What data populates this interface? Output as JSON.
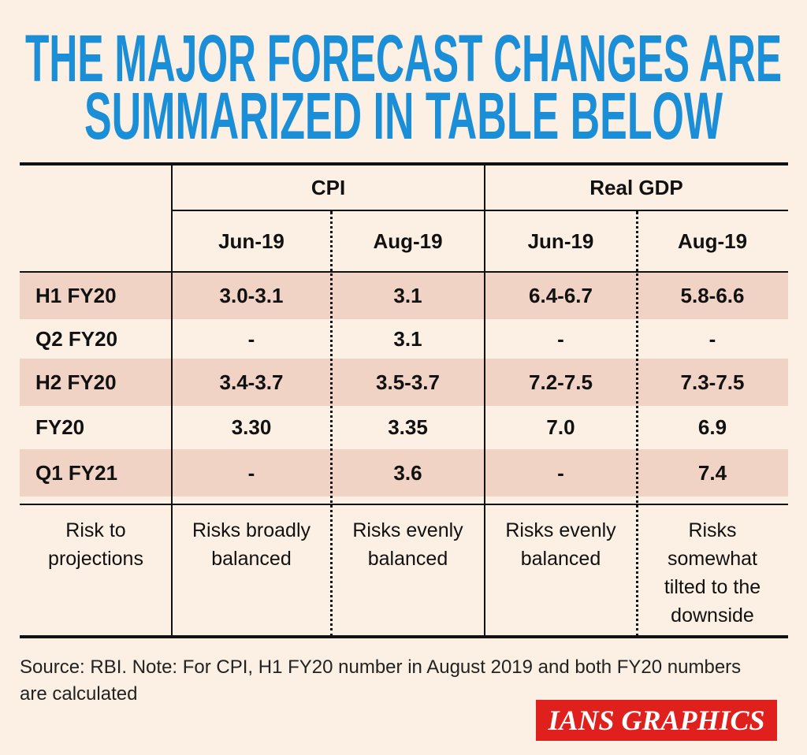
{
  "header": {
    "title": [
      "THE MAJOR FORECAST CHANGES ARE",
      "SUMMARIZED IN TABLE BELOW"
    ]
  },
  "table": {
    "groups": [
      "CPI",
      "Real GDP"
    ],
    "subheaders": [
      "Jun-19",
      "Aug-19",
      "Jun-19",
      "Aug-19"
    ],
    "rows": [
      [
        "H1 FY20",
        "3.0-3.1",
        "3.1",
        "6.4-6.7",
        "5.8-6.6"
      ],
      [
        "Q2 FY20",
        "-",
        "3.1",
        "-",
        "-"
      ],
      [
        "H2 FY20",
        "3.4-3.7",
        "3.5-3.7",
        "7.2-7.5",
        "7.3-7.5"
      ],
      [
        "FY20",
        "3.30",
        "3.35",
        "7.0",
        "6.9"
      ],
      [
        "Q1 FY21",
        "-",
        "3.6",
        "-",
        "7.4"
      ]
    ],
    "risk_row": [
      "Risk to projections",
      "Risks broadly balanced",
      "Risks evenly balanced",
      "Risks evenly balanced",
      "Risks somewhat tilted to the downside"
    ]
  },
  "footer": {
    "source": "Source: RBI. Note: For CPI, H1 FY20 number in August 2019 and both FY20 numbers are calculated",
    "brand": "IANS GRAPHICS"
  }
}
